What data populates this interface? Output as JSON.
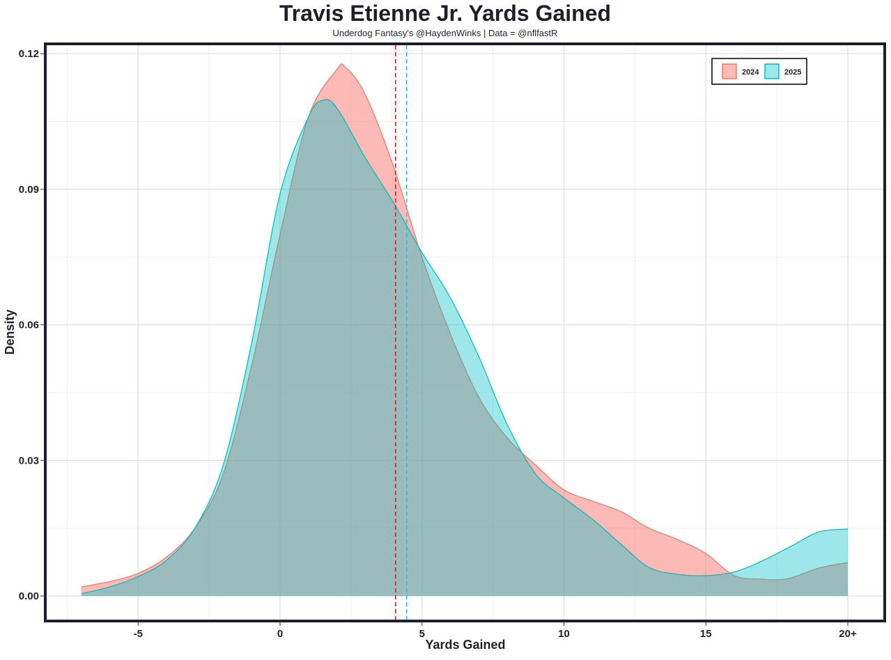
{
  "chart_data": {
    "type": "area",
    "title": "Travis Etienne Jr. Yards Gained",
    "subtitle": "Underdog Fantasy's @HaydenWinks | Data = @nflfastR",
    "xlabel": "Yards Gained",
    "ylabel": "Density",
    "xlim": [
      -8.5,
      22.5
    ],
    "ylim": [
      -0.005,
      0.123
    ],
    "x_ticks": [
      -5,
      0,
      5,
      10,
      15,
      20
    ],
    "x_tick_labels": [
      "-5",
      "0",
      "5",
      "10",
      "15",
      "20+"
    ],
    "y_ticks": [
      0,
      0.03,
      0.06,
      0.09,
      0.12
    ],
    "y_tick_labels": [
      "0.00",
      "0.03",
      "0.06",
      "0.09",
      "0.12"
    ],
    "grid": true,
    "legend": {
      "position": "top-right",
      "entries": [
        "2024",
        "2025"
      ]
    },
    "series": [
      {
        "name": "2024",
        "color": "#f8766d",
        "median": 4.07,
        "points": [
          [
            -7,
            0.002
          ],
          [
            -6,
            0.0032
          ],
          [
            -5,
            0.005
          ],
          [
            -4,
            0.0086
          ],
          [
            -3,
            0.015
          ],
          [
            -2,
            0.027
          ],
          [
            -1,
            0.051
          ],
          [
            0,
            0.08
          ],
          [
            1,
            0.106
          ],
          [
            2,
            0.1165
          ],
          [
            2.3,
            0.117
          ],
          [
            3,
            0.111
          ],
          [
            4,
            0.095
          ],
          [
            5,
            0.075
          ],
          [
            6,
            0.058
          ],
          [
            7,
            0.044
          ],
          [
            8,
            0.035
          ],
          [
            9,
            0.029
          ],
          [
            10,
            0.0235
          ],
          [
            11,
            0.021
          ],
          [
            12,
            0.0187
          ],
          [
            13,
            0.015
          ],
          [
            14,
            0.0125
          ],
          [
            15,
            0.0094
          ],
          [
            16,
            0.0045
          ],
          [
            17,
            0.0037
          ],
          [
            17.5,
            0.0036
          ],
          [
            18,
            0.004
          ],
          [
            19,
            0.0062
          ],
          [
            20,
            0.0074
          ]
        ]
      },
      {
        "name": "2025",
        "color": "#00bfc4",
        "median": 4.46,
        "points": [
          [
            -7,
            0.0005
          ],
          [
            -6,
            0.002
          ],
          [
            -5,
            0.0043
          ],
          [
            -4,
            0.0079
          ],
          [
            -3,
            0.015
          ],
          [
            -2,
            0.029
          ],
          [
            -1,
            0.056
          ],
          [
            0,
            0.089
          ],
          [
            1,
            0.106
          ],
          [
            1.5,
            0.1097
          ],
          [
            2,
            0.108
          ],
          [
            3,
            0.097
          ],
          [
            4,
            0.087
          ],
          [
            5,
            0.076
          ],
          [
            6,
            0.066
          ],
          [
            7,
            0.053
          ],
          [
            8,
            0.038
          ],
          [
            9,
            0.027
          ],
          [
            10,
            0.0217
          ],
          [
            11,
            0.017
          ],
          [
            12,
            0.0115
          ],
          [
            13,
            0.0063
          ],
          [
            14,
            0.0048
          ],
          [
            15,
            0.0045
          ],
          [
            16,
            0.0053
          ],
          [
            17,
            0.0078
          ],
          [
            18,
            0.011
          ],
          [
            19,
            0.0142
          ],
          [
            20,
            0.0148
          ]
        ]
      }
    ]
  }
}
